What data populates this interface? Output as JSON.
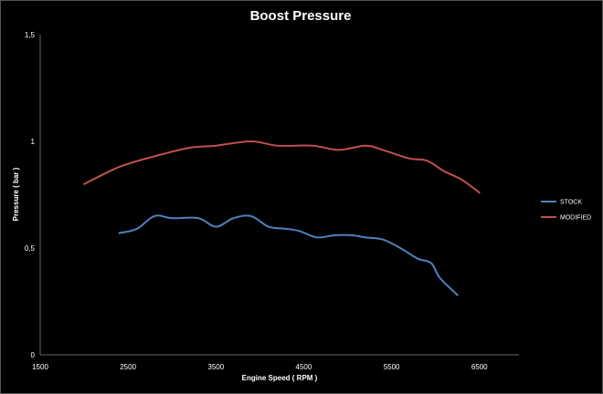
{
  "chart_data": {
    "type": "line",
    "title": "Boost Pressure",
    "xlabel": "Engine Speed ( RPM )",
    "ylabel": "Pressure ( bar )",
    "xlim": [
      1500,
      6950
    ],
    "ylim": [
      0,
      1.5
    ],
    "x_ticks": [
      "1500",
      "2500",
      "3500",
      "4500",
      "5500",
      "6500"
    ],
    "y_ticks": [
      "0",
      "0,5",
      "1",
      "1,5"
    ],
    "grid": false,
    "legend_position": "right",
    "series": [
      {
        "name": "STOCK",
        "color": "#4f81bd",
        "x": [
          2400,
          2600,
          2800,
          3000,
          3300,
          3500,
          3700,
          3900,
          4100,
          4300,
          4450,
          4650,
          4850,
          5050,
          5200,
          5400,
          5600,
          5800,
          5950,
          6050,
          6250
        ],
        "y": [
          0.57,
          0.59,
          0.65,
          0.64,
          0.64,
          0.6,
          0.64,
          0.65,
          0.6,
          0.59,
          0.58,
          0.55,
          0.56,
          0.56,
          0.55,
          0.54,
          0.5,
          0.45,
          0.43,
          0.36,
          0.28
        ]
      },
      {
        "name": "MODIFIED",
        "color": "#c0504d",
        "x": [
          2000,
          2400,
          2800,
          3200,
          3500,
          3900,
          4200,
          4600,
          4900,
          5200,
          5400,
          5700,
          5900,
          6100,
          6300,
          6500
        ],
        "y": [
          0.8,
          0.88,
          0.93,
          0.97,
          0.98,
          1.0,
          0.98,
          0.98,
          0.96,
          0.98,
          0.96,
          0.92,
          0.91,
          0.86,
          0.82,
          0.76
        ]
      }
    ]
  }
}
